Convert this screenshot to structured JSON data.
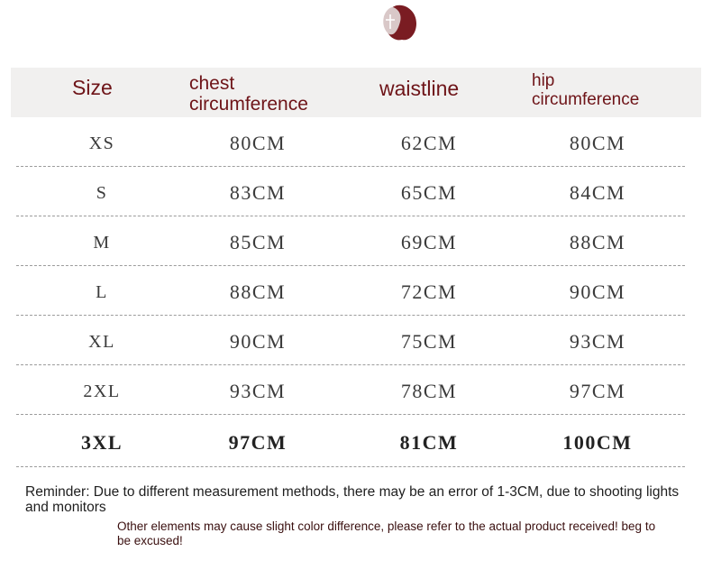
{
  "table": {
    "headers": {
      "size": "Size",
      "chest_line1": "chest",
      "chest_line2": "circumference",
      "waist": "waistline",
      "hip_line1": "hip",
      "hip_line2": "circumference"
    },
    "rows": [
      {
        "size": "XS",
        "chest": "80CM",
        "waist": "62CM",
        "hip": "80CM"
      },
      {
        "size": "S",
        "chest": "83CM",
        "waist": "65CM",
        "hip": "84CM"
      },
      {
        "size": "M",
        "chest": "85CM",
        "waist": "69CM",
        "hip": "88CM"
      },
      {
        "size": "L",
        "chest": "88CM",
        "waist": "72CM",
        "hip": "90CM"
      },
      {
        "size": "XL",
        "chest": "90CM",
        "waist": "75CM",
        "hip": "93CM"
      },
      {
        "size": "2XL",
        "chest": "93CM",
        "waist": "78CM",
        "hip": "97CM"
      },
      {
        "size": "3XL",
        "chest": "97CM",
        "waist": "81CM",
        "hip": "100CM"
      }
    ]
  },
  "notes": {
    "reminder": "Reminder: Due to different measurement methods, there may be an error of 1-3CM, due to shooting lights and monitors",
    "color": "Other elements may cause slight color difference, please refer to the actual product received! beg to be excused!"
  },
  "colors": {
    "header_text": "#6e1418",
    "header_bg": "#f1f0ef",
    "logo": "#7a1c22"
  }
}
